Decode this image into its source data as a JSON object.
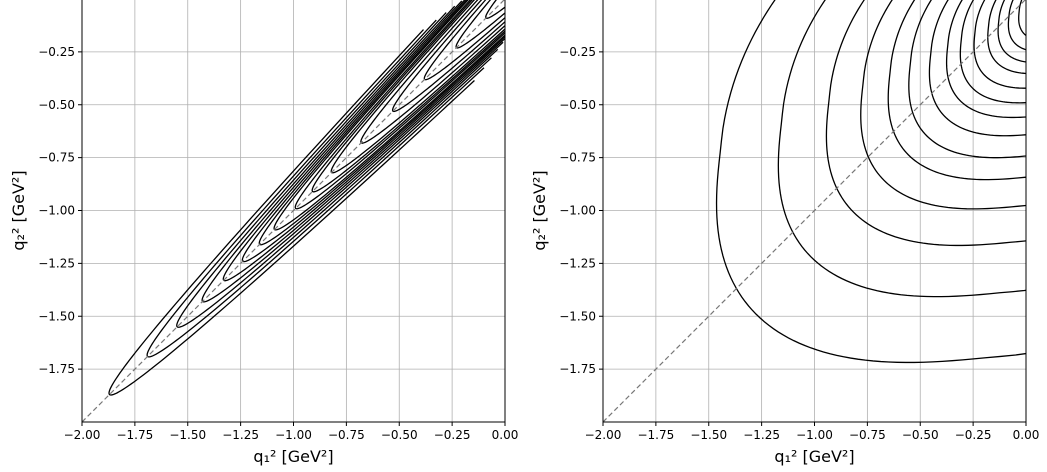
{
  "chart_data": [
    {
      "type": "contour",
      "panel": "left",
      "xlabel": "q₁² [GeV²]",
      "ylabel": "q₂² [GeV²]",
      "xlim": [
        -2.0,
        0.0
      ],
      "ylim": [
        -2.0,
        0.0
      ],
      "xticks": [
        "−2.00",
        "−1.75",
        "−1.50",
        "−1.25",
        "−1.00",
        "−0.75",
        "−0.50",
        "−0.25",
        "0.00"
      ],
      "yticks": [
        "−0.25",
        "−0.50",
        "−0.75",
        "−1.00",
        "−1.25",
        "−1.50",
        "−1.75"
      ],
      "grid": true,
      "diagonal": {
        "style": "dashed",
        "color": "#777777",
        "from": [
          -2.0,
          -2.0
        ],
        "to": [
          0.0,
          0.0
        ]
      },
      "contour_color": "#000000",
      "contour_tips": [
        [
          -1.87,
          -1.87
        ],
        [
          -1.69,
          -1.69
        ],
        [
          -1.55,
          -1.55
        ],
        [
          -1.43,
          -1.43
        ],
        [
          -1.33,
          -1.33
        ],
        [
          -1.24,
          -1.24
        ],
        [
          -1.16,
          -1.16
        ],
        [
          -1.09,
          -1.09
        ],
        [
          -0.99,
          -0.99
        ],
        [
          -0.91,
          -0.91
        ],
        [
          -0.82,
          -0.82
        ],
        [
          -0.68,
          -0.68
        ],
        [
          -0.53,
          -0.53
        ],
        [
          -0.38,
          -0.38
        ],
        [
          -0.23,
          -0.23
        ],
        [
          -0.09,
          -0.09
        ]
      ]
    },
    {
      "type": "contour",
      "panel": "right",
      "xlabel": "q₁² [GeV²]",
      "ylabel": "q₂² [GeV²]",
      "xlim": [
        -2.0,
        0.0
      ],
      "ylim": [
        -2.0,
        0.0
      ],
      "xticks": [
        "−2.00",
        "−1.75",
        "−1.50",
        "−1.25",
        "−1.00",
        "−0.75",
        "−0.50",
        "−0.25",
        "0.00"
      ],
      "yticks": [
        "−0.25",
        "−0.50",
        "−0.75",
        "−1.00",
        "−1.25",
        "−1.50",
        "−1.75"
      ],
      "grid": true,
      "diagonal": {
        "style": "dashed",
        "color": "#777777",
        "from": [
          -2.0,
          -2.0
        ],
        "to": [
          0.0,
          0.0
        ]
      },
      "contour_color": "#000000",
      "contour_levels": [
        1.0,
        0.82,
        0.68,
        0.58,
        0.5,
        0.44,
        0.38,
        0.33,
        0.29,
        0.25,
        0.21,
        0.18,
        0.15,
        0.12,
        0.09,
        0.06,
        0.035,
        0.015
      ]
    }
  ]
}
